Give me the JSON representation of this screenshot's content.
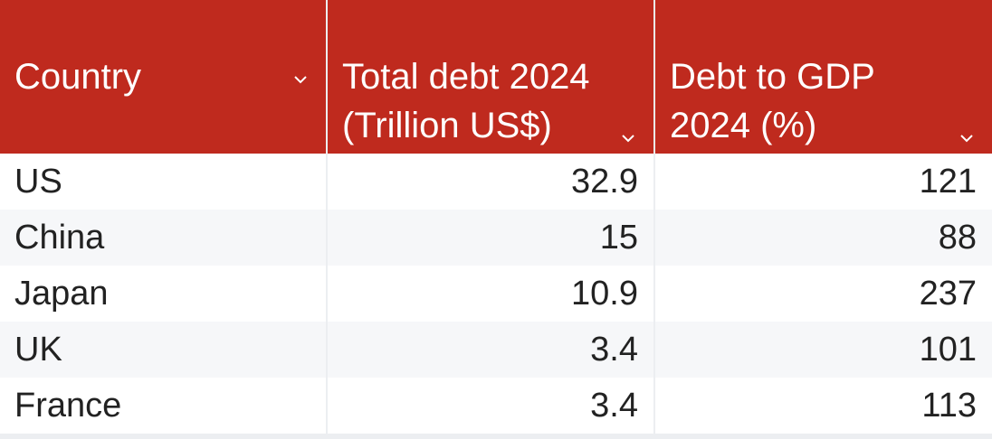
{
  "table": {
    "columns": [
      "Country",
      "Total debt 2024 (Trillion US$)",
      "Debt to GDP 2024 (%)"
    ],
    "rows": [
      [
        "US",
        32.9,
        121
      ],
      [
        "China",
        15,
        88
      ],
      [
        "Japan",
        10.9,
        237
      ],
      [
        "UK",
        3.4,
        101
      ],
      [
        "France",
        3.4,
        113
      ]
    ]
  }
}
